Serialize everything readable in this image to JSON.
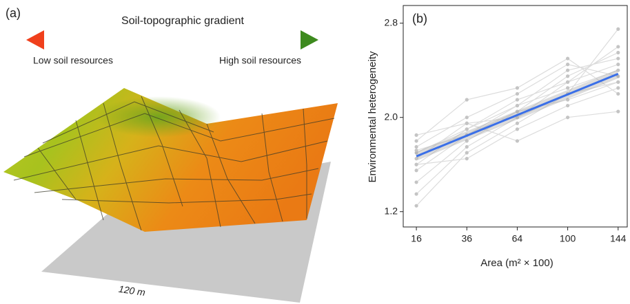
{
  "panel_a": {
    "panel_label": "(a)",
    "title": "Soil-topographic gradient",
    "left_label": "Low soil resources",
    "right_label": "High soil resources",
    "scale_label": "120 m"
  },
  "chart_data": {
    "type": "line",
    "panel_label": "(b)",
    "ylabel": "Environmental heterogeneity",
    "xlabel": "Area (m² × 100)",
    "xscale": "sqrt",
    "x": [
      16,
      36,
      64,
      100,
      144
    ],
    "xlim": [
      12.1,
      152.8
    ],
    "xticks": [
      16,
      36,
      64,
      100,
      144
    ],
    "ylim": [
      1.07,
      2.95
    ],
    "yticks": [
      1.2,
      {
        "value": 2,
        "label": "2.0"
      },
      2.8
    ],
    "site_color": "#dcdcdc",
    "point_color": "#c4c4c4",
    "series": [
      {
        "values": [
          1.25,
          1.7,
          1.95,
          2.2,
          2.75
        ]
      },
      {
        "values": [
          1.35,
          1.75,
          2.0,
          2.3,
          2.6
        ]
      },
      {
        "values": [
          1.45,
          1.8,
          2.05,
          2.35,
          2.55
        ]
      },
      {
        "values": [
          1.55,
          1.85,
          2.1,
          2.4,
          2.5
        ]
      },
      {
        "values": [
          1.6,
          1.9,
          2.1,
          2.25,
          2.4
        ]
      },
      {
        "values": [
          1.65,
          1.95,
          2.0,
          2.2,
          2.3
        ]
      },
      {
        "values": [
          1.7,
          1.9,
          2.15,
          2.3,
          2.45
        ]
      },
      {
        "values": [
          1.75,
          2.0,
          2.2,
          2.45,
          2.35
        ]
      },
      {
        "values": [
          1.8,
          2.15,
          2.25,
          2.5,
          2.2
        ]
      },
      {
        "values": [
          1.85,
          1.95,
          1.8,
          2.0,
          2.05
        ]
      },
      {
        "values": [
          1.6,
          1.65,
          1.9,
          2.1,
          2.25
        ]
      },
      {
        "values": [
          1.72,
          1.85,
          2.05,
          2.15,
          2.3
        ]
      }
    ],
    "fit": {
      "x": [
        16,
        144
      ],
      "values": [
        1.67,
        2.37
      ],
      "color": "#3a6fe8"
    }
  }
}
